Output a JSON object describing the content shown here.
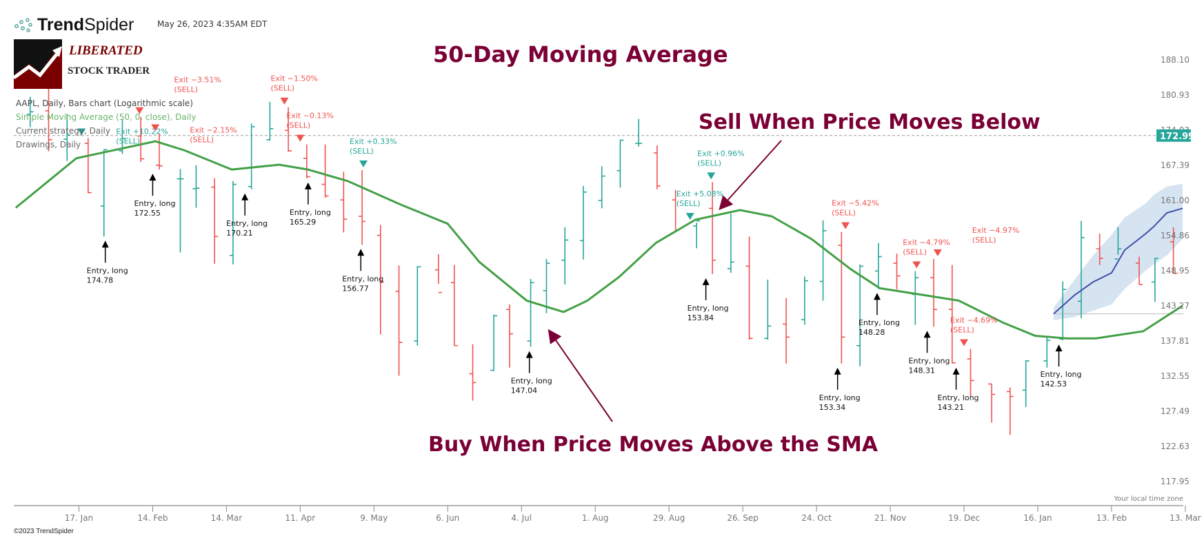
{
  "header": {
    "brand": {
      "bold": "Trend",
      "light": "Spider"
    },
    "timestamp": "May 26, 2023 4:35AM EDT",
    "partner_logo": {
      "line1": "LIBERATED",
      "line2": "STOCK TRADER"
    }
  },
  "legend": {
    "symbol_line": "AAPL, Daily, Bars chart (Logarithmic scale)",
    "indicator_line": "Simple Moving Average (50, 0, close), Daily",
    "strategy_line": "Current strategy, Daily",
    "drawings_line": "Drawings, Daily"
  },
  "annotations": {
    "title": "50-Day Moving Average",
    "sell_note": "Sell When Price Moves Below",
    "buy_note": "Buy When Price Moves Above the SMA"
  },
  "footer": {
    "timezone": "Your local time zone",
    "copyright": "©2023 TrendSpider"
  },
  "colors": {
    "up": "#26a69a",
    "down": "#ef5350",
    "sma": "#43a047",
    "forecast": "#3f4fa8",
    "forecast_band": "#d6e4f2",
    "annotation": "#7a0035",
    "price_badge": "#26a69a"
  },
  "chart_data": {
    "type": "ohlc-bar",
    "symbol": "AAPL",
    "scale": "log",
    "ylim": [
      115,
      192
    ],
    "last_price": "172.99",
    "y_ticks": [
      "188.10",
      "180.93",
      "174.03",
      "167.39",
      "161.00",
      "154.86",
      "148.95",
      "143.27",
      "137.81",
      "132.55",
      "127.49",
      "122.63",
      "117.95"
    ],
    "x_ticks": [
      {
        "date": "2022-01-17",
        "label": "17. Jan"
      },
      {
        "date": "2022-02-14",
        "label": "14. Feb"
      },
      {
        "date": "2022-03-14",
        "label": "14. Mar"
      },
      {
        "date": "2022-04-11",
        "label": "11. Apr"
      },
      {
        "date": "2022-05-09",
        "label": "9. May"
      },
      {
        "date": "2022-06-06",
        "label": "6. Jun"
      },
      {
        "date": "2022-07-04",
        "label": "4. Jul"
      },
      {
        "date": "2022-08-01",
        "label": "1. Aug"
      },
      {
        "date": "2022-08-29",
        "label": "29. Aug"
      },
      {
        "date": "2022-09-26",
        "label": "26. Sep"
      },
      {
        "date": "2022-10-24",
        "label": "24. Oct"
      },
      {
        "date": "2022-11-21",
        "label": "21. Nov"
      },
      {
        "date": "2022-12-19",
        "label": "19. Dec"
      },
      {
        "date": "2023-01-16",
        "label": "16. Jan"
      },
      {
        "date": "2023-02-13",
        "label": "13. Feb"
      },
      {
        "date": "2023-03-13",
        "label": "13. Mar"
      }
    ],
    "bars_columns": [
      "week",
      "open",
      "high",
      "low",
      "close"
    ],
    "bars": [
      [
        "2021-12-27",
        177.1,
        180.6,
        174.6,
        177.6
      ],
      [
        "2022-01-03",
        177.8,
        182.9,
        170.0,
        172.2
      ],
      [
        "2022-01-10",
        172.3,
        177.2,
        168.2,
        173.1
      ],
      [
        "2022-01-18",
        171.5,
        172.5,
        162.3,
        162.4
      ],
      [
        "2022-01-24",
        160.0,
        170.4,
        154.7,
        170.3
      ],
      [
        "2022-01-31",
        170.1,
        176.2,
        169.5,
        172.4
      ],
      [
        "2022-02-07",
        172.9,
        176.6,
        168.0,
        168.6
      ],
      [
        "2022-02-14",
        167.4,
        173.3,
        166.6,
        167.3
      ],
      [
        "2022-02-22",
        164.9,
        166.7,
        152.0,
        164.9
      ],
      [
        "2022-02-28",
        163.1,
        167.4,
        159.7,
        163.2
      ],
      [
        "2022-03-07",
        163.4,
        165.0,
        150.1,
        154.7
      ],
      [
        "2022-03-14",
        151.5,
        164.5,
        150.0,
        163.9
      ],
      [
        "2022-03-21",
        163.5,
        175.3,
        163.0,
        174.7
      ],
      [
        "2022-03-28",
        172.2,
        179.6,
        172.0,
        174.3
      ],
      [
        "2022-04-04",
        174.0,
        178.5,
        169.9,
        170.1
      ],
      [
        "2022-04-11",
        168.7,
        171.3,
        165.0,
        165.3
      ],
      [
        "2022-04-18",
        163.9,
        171.3,
        161.5,
        161.8
      ],
      [
        "2022-04-25",
        161.1,
        166.2,
        155.4,
        157.7
      ],
      [
        "2022-05-02",
        158.2,
        166.5,
        153.3,
        157.3
      ],
      [
        "2022-05-09",
        154.9,
        156.7,
        138.8,
        147.1
      ],
      [
        "2022-05-16",
        145.6,
        149.8,
        132.6,
        137.6
      ],
      [
        "2022-05-23",
        137.8,
        149.7,
        137.1,
        149.6
      ],
      [
        "2022-05-31",
        149.1,
        151.7,
        146.8,
        145.4
      ],
      [
        "2022-06-06",
        147.0,
        149.9,
        137.1,
        137.1
      ],
      [
        "2022-06-13",
        132.9,
        137.3,
        129.0,
        131.6
      ],
      [
        "2022-06-21",
        133.4,
        141.9,
        133.3,
        141.7
      ],
      [
        "2022-06-27",
        142.7,
        143.5,
        133.8,
        138.9
      ],
      [
        "2022-07-05",
        137.8,
        147.6,
        136.9,
        147.0
      ],
      [
        "2022-07-11",
        145.7,
        150.9,
        142.1,
        150.2
      ],
      [
        "2022-07-18",
        150.7,
        156.3,
        146.7,
        154.1
      ],
      [
        "2022-07-25",
        154.0,
        163.6,
        150.8,
        162.5
      ],
      [
        "2022-08-01",
        161.0,
        167.2,
        159.6,
        165.4
      ],
      [
        "2022-08-08",
        166.4,
        172.2,
        163.3,
        172.1
      ],
      [
        "2022-08-15",
        171.5,
        176.2,
        170.9,
        171.5
      ],
      [
        "2022-08-22",
        169.7,
        171.1,
        163.0,
        163.6
      ],
      [
        "2022-08-29",
        161.1,
        162.9,
        155.8,
        155.8
      ],
      [
        "2022-09-06",
        156.5,
        157.1,
        152.7,
        157.4
      ],
      [
        "2022-09-12",
        159.6,
        164.3,
        148.4,
        150.7
      ],
      [
        "2022-09-19",
        149.3,
        158.7,
        148.6,
        150.4
      ],
      [
        "2022-09-26",
        149.7,
        154.7,
        138.0,
        138.2
      ],
      [
        "2022-10-03",
        138.2,
        147.5,
        138.0,
        140.1
      ],
      [
        "2022-10-10",
        140.4,
        144.5,
        134.4,
        138.4
      ],
      [
        "2022-10-17",
        141.1,
        148.0,
        140.3,
        147.3
      ],
      [
        "2022-10-24",
        147.2,
        157.5,
        144.1,
        155.7
      ],
      [
        "2022-10-31",
        153.2,
        155.5,
        134.4,
        138.4
      ],
      [
        "2022-11-07",
        137.1,
        150.0,
        134.0,
        149.7
      ],
      [
        "2022-11-14",
        148.9,
        153.6,
        146.0,
        151.3
      ],
      [
        "2022-11-21",
        150.2,
        151.8,
        145.9,
        148.1
      ],
      [
        "2022-11-28",
        145.1,
        148.9,
        140.3,
        147.8
      ],
      [
        "2022-12-05",
        147.8,
        150.9,
        140.0,
        142.7
      ],
      [
        "2022-12-12",
        142.7,
        149.9,
        134.4,
        134.5
      ],
      [
        "2022-12-19",
        135.1,
        136.6,
        129.6,
        131.9
      ],
      [
        "2022-12-27",
        131.4,
        131.4,
        125.9,
        129.9
      ],
      [
        "2023-01-03",
        130.3,
        130.9,
        124.2,
        129.6
      ],
      [
        "2023-01-09",
        130.5,
        134.9,
        128.1,
        134.8
      ],
      [
        "2023-01-17",
        134.8,
        138.6,
        133.8,
        137.9
      ],
      [
        "2023-01-23",
        138.1,
        147.2,
        137.9,
        145.9
      ],
      [
        "2023-01-30",
        144.0,
        157.4,
        141.3,
        154.5
      ],
      [
        "2023-02-06",
        152.6,
        155.2,
        149.9,
        151.0
      ],
      [
        "2023-02-13",
        150.9,
        156.3,
        151.6,
        152.6
      ],
      [
        "2023-02-21",
        150.2,
        151.3,
        146.7,
        146.7
      ],
      [
        "2023-02-27",
        147.1,
        151.1,
        143.9,
        151.0
      ],
      [
        "2023-03-06",
        153.8,
        156.3,
        148.5,
        148.5
      ]
    ],
    "sma_50": [
      [
        "2021-12-24",
        159.7
      ],
      [
        "2022-01-16",
        168.7
      ],
      [
        "2022-02-15",
        171.9
      ],
      [
        "2022-02-26",
        170.2
      ],
      [
        "2022-03-16",
        166.6
      ],
      [
        "2022-04-03",
        167.5
      ],
      [
        "2022-04-14",
        166.6
      ],
      [
        "2022-04-29",
        164.5
      ],
      [
        "2022-05-19",
        160.3
      ],
      [
        "2022-06-06",
        156.9
      ],
      [
        "2022-06-18",
        150.4
      ],
      [
        "2022-07-06",
        144.1
      ],
      [
        "2022-07-20",
        142.3
      ],
      [
        "2022-07-29",
        144.1
      ],
      [
        "2022-08-10",
        147.9
      ],
      [
        "2022-08-24",
        153.6
      ],
      [
        "2022-09-08",
        157.6
      ],
      [
        "2022-09-25",
        159.3
      ],
      [
        "2022-10-07",
        158.2
      ],
      [
        "2022-10-22",
        154.3
      ],
      [
        "2022-11-06",
        149.2
      ],
      [
        "2022-11-17",
        146.1
      ],
      [
        "2022-12-05",
        144.9
      ],
      [
        "2022-12-17",
        144.1
      ],
      [
        "2023-01-03",
        140.6
      ],
      [
        "2023-01-15",
        138.6
      ],
      [
        "2023-01-27",
        138.2
      ],
      [
        "2023-02-07",
        138.2
      ],
      [
        "2023-02-25",
        139.3
      ],
      [
        "2023-03-12",
        143.3
      ]
    ],
    "entries": [
      {
        "date": "2022-01-27",
        "label": "Entry, long",
        "price": "174.78"
      },
      {
        "date": "2022-02-14",
        "label": "Entry, long",
        "price": "172.55"
      },
      {
        "date": "2022-03-21",
        "label": "Entry, long",
        "price": "170.21"
      },
      {
        "date": "2022-04-14",
        "label": "Entry, long",
        "price": "165.29"
      },
      {
        "date": "2022-05-04",
        "label": "Entry, long",
        "price": "156.77"
      },
      {
        "date": "2022-07-07",
        "label": "Entry, long",
        "price": "147.04"
      },
      {
        "date": "2022-09-12",
        "label": "Entry, long",
        "price": "153.84"
      },
      {
        "date": "2022-11-01",
        "label": "Entry, long",
        "price": "153.34"
      },
      {
        "date": "2022-11-16",
        "label": "Entry, long",
        "price": "148.28"
      },
      {
        "date": "2022-12-05",
        "label": "Entry, long",
        "price": "148.31"
      },
      {
        "date": "2022-12-16",
        "label": "Entry, long",
        "price": "143.21"
      },
      {
        "date": "2023-01-24",
        "label": "Entry, long",
        "price": "142.53"
      }
    ],
    "exits": [
      {
        "date": "2022-01-18",
        "label": "Exit +10.22%",
        "sub": "(SELL)",
        "positive": true
      },
      {
        "date": "2022-02-09",
        "label": "Exit −3.51%",
        "sub": "(SELL)",
        "positive": false
      },
      {
        "date": "2022-02-15",
        "label": "Exit −2.15%",
        "sub": "(SELL)",
        "positive": false
      },
      {
        "date": "2022-04-05",
        "label": "Exit −1.50%",
        "sub": "(SELL)",
        "positive": false
      },
      {
        "date": "2022-04-11",
        "label": "Exit −0.13%",
        "sub": "(SELL)",
        "positive": false
      },
      {
        "date": "2022-05-05",
        "label": "Exit +0.33%",
        "sub": "(SELL)",
        "positive": true
      },
      {
        "date": "2022-09-06",
        "label": "Exit +5.08%",
        "sub": "(SELL)",
        "positive": true
      },
      {
        "date": "2022-09-14",
        "label": "Exit +0.96%",
        "sub": "(SELL)",
        "positive": true
      },
      {
        "date": "2022-11-04",
        "label": "Exit −5.42%",
        "sub": "(SELL)",
        "positive": false
      },
      {
        "date": "2022-12-01",
        "label": "Exit −4.79%",
        "sub": "(SELL)",
        "positive": false
      },
      {
        "date": "2022-12-09",
        "label": "Exit −4.97%",
        "sub": "(SELL)",
        "positive": false
      },
      {
        "date": "2022-12-19",
        "label": "Exit −4.69%",
        "sub": "(SELL)",
        "positive": false
      }
    ],
    "forecast_columns": [
      "date",
      "mid",
      "upper",
      "lower"
    ],
    "forecast": [
      [
        "2023-01-22",
        142.0,
        143.0,
        141.0
      ],
      [
        "2023-01-30",
        145.0,
        147.5,
        141.5
      ],
      [
        "2023-02-06",
        147.1,
        151.5,
        142.5
      ],
      [
        "2023-02-13",
        148.6,
        155.0,
        143.5
      ],
      [
        "2023-02-18",
        152.4,
        158.0,
        146.0
      ],
      [
        "2023-02-26",
        155.2,
        160.5,
        149.0
      ],
      [
        "2023-03-01",
        156.4,
        162.0,
        150.0
      ],
      [
        "2023-03-06",
        158.8,
        163.5,
        151.5
      ],
      [
        "2023-03-12",
        159.6,
        164.0,
        154.3
      ]
    ],
    "forecast_base_price": 142.0
  }
}
